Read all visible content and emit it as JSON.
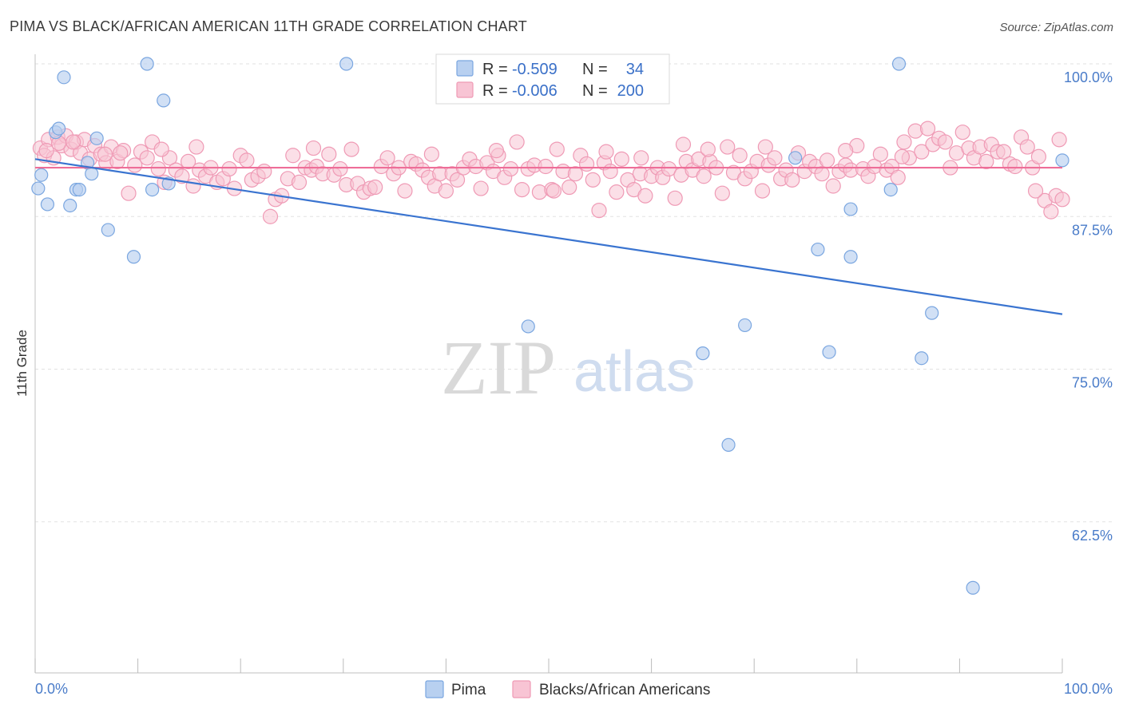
{
  "header": {
    "title": "PIMA VS BLACK/AFRICAN AMERICAN 11TH GRADE CORRELATION CHART",
    "source": "Source: ZipAtlas.com"
  },
  "watermark": {
    "zip": "ZIP",
    "atlas": "atlas"
  },
  "legend": {
    "rows": [
      {
        "r_label": "R =",
        "r_value": "-0.509",
        "n_label": "N =",
        "n_value": "34"
      },
      {
        "r_label": "R =",
        "r_value": "-0.006",
        "n_label": "N =",
        "n_value": "200"
      }
    ]
  },
  "bottom_legend": {
    "pima": "Pima",
    "black": "Blacks/African Americans"
  },
  "colors": {
    "pima_fill": "#b8d0f0",
    "pima_stroke": "#7aa6e0",
    "pima_line": "#3a74d0",
    "black_fill": "#f8c4d4",
    "black_stroke": "#ef9ab5",
    "black_line": "#ee6e98",
    "tick_label": "#4a7cc9",
    "grid": "#e2e2e2"
  },
  "chart_data": {
    "type": "scatter",
    "title": "PIMA VS BLACK/AFRICAN AMERICAN 11TH GRADE CORRELATION CHART",
    "xlabel": "",
    "ylabel": "11th Grade",
    "xlim": [
      0,
      100
    ],
    "ylim": [
      52,
      101
    ],
    "x_tick_labels": [
      "0.0%",
      "100.0%"
    ],
    "y_ticks": [
      100,
      87.5,
      75,
      62.5
    ],
    "y_tick_labels": [
      "100.0%",
      "87.5%",
      "75.0%",
      "62.5%"
    ],
    "grid": true,
    "legend_position": "top-center",
    "series": [
      {
        "name": "Pima",
        "trend": {
          "x": [
            0,
            100
          ],
          "y": [
            92.2,
            79.5
          ]
        },
        "points": [
          [
            0.3,
            89.8
          ],
          [
            0.6,
            90.9
          ],
          [
            1.2,
            88.5
          ],
          [
            2.0,
            94.4
          ],
          [
            2.3,
            94.7
          ],
          [
            2.8,
            98.9
          ],
          [
            3.4,
            88.4
          ],
          [
            4.0,
            89.7
          ],
          [
            4.3,
            89.7
          ],
          [
            5.1,
            91.9
          ],
          [
            5.5,
            91.0
          ],
          [
            6.0,
            93.9
          ],
          [
            7.1,
            86.4
          ],
          [
            9.6,
            84.2
          ],
          [
            10.9,
            100.0
          ],
          [
            11.4,
            89.7
          ],
          [
            12.5,
            97.0
          ],
          [
            13.0,
            90.2
          ],
          [
            30.3,
            100.0
          ],
          [
            48.0,
            78.5
          ],
          [
            65.0,
            76.3
          ],
          [
            67.5,
            68.8
          ],
          [
            69.1,
            78.6
          ],
          [
            74.0,
            92.3
          ],
          [
            76.2,
            84.8
          ],
          [
            77.3,
            76.4
          ],
          [
            79.4,
            84.2
          ],
          [
            79.4,
            88.1
          ],
          [
            83.3,
            89.7
          ],
          [
            84.1,
            100.0
          ],
          [
            86.3,
            75.9
          ],
          [
            87.3,
            79.6
          ],
          [
            91.3,
            57.1
          ],
          [
            100.0,
            92.1
          ]
        ]
      },
      {
        "name": "Blacks/African Americans",
        "trend": {
          "x": [
            0,
            100
          ],
          "y": [
            91.5,
            91.5
          ]
        },
        "points": [
          [
            0.5,
            93.1
          ],
          [
            0.9,
            92.5
          ],
          [
            1.3,
            93.8
          ],
          [
            1.8,
            92.3
          ],
          [
            2.2,
            94.0
          ],
          [
            2.6,
            93.3
          ],
          [
            3.0,
            94.1
          ],
          [
            3.5,
            93.0
          ],
          [
            4.0,
            93.6
          ],
          [
            4.4,
            92.7
          ],
          [
            4.8,
            93.8
          ],
          [
            5.3,
            92.2
          ],
          [
            5.8,
            93.3
          ],
          [
            6.4,
            92.6
          ],
          [
            6.9,
            91.9
          ],
          [
            7.4,
            93.2
          ],
          [
            8.0,
            92.0
          ],
          [
            8.6,
            92.9
          ],
          [
            9.1,
            89.4
          ],
          [
            9.7,
            91.7
          ],
          [
            10.3,
            92.8
          ],
          [
            10.9,
            92.3
          ],
          [
            11.4,
            93.6
          ],
          [
            12.0,
            91.4
          ],
          [
            12.6,
            90.3
          ],
          [
            13.1,
            92.3
          ],
          [
            13.7,
            91.3
          ],
          [
            14.3,
            90.8
          ],
          [
            14.9,
            92.0
          ],
          [
            15.4,
            90.0
          ],
          [
            16.0,
            91.3
          ],
          [
            16.6,
            90.8
          ],
          [
            17.1,
            91.5
          ],
          [
            17.7,
            90.3
          ],
          [
            18.3,
            90.6
          ],
          [
            18.9,
            91.4
          ],
          [
            19.4,
            89.8
          ],
          [
            20.0,
            92.5
          ],
          [
            20.6,
            92.1
          ],
          [
            21.1,
            90.5
          ],
          [
            21.7,
            90.8
          ],
          [
            22.3,
            91.2
          ],
          [
            22.9,
            87.5
          ],
          [
            23.4,
            88.9
          ],
          [
            24.0,
            89.2
          ],
          [
            24.6,
            90.6
          ],
          [
            25.1,
            92.5
          ],
          [
            25.7,
            90.3
          ],
          [
            26.3,
            91.5
          ],
          [
            26.9,
            91.3
          ],
          [
            27.4,
            91.6
          ],
          [
            28.0,
            91.0
          ],
          [
            28.6,
            92.6
          ],
          [
            29.1,
            90.9
          ],
          [
            29.7,
            91.4
          ],
          [
            30.3,
            90.1
          ],
          [
            30.8,
            93.0
          ],
          [
            31.4,
            90.2
          ],
          [
            32.0,
            89.5
          ],
          [
            32.6,
            89.8
          ],
          [
            33.1,
            89.9
          ],
          [
            33.7,
            91.6
          ],
          [
            34.3,
            92.3
          ],
          [
            34.9,
            91.0
          ],
          [
            35.4,
            91.5
          ],
          [
            36.0,
            89.6
          ],
          [
            36.6,
            92.0
          ],
          [
            37.1,
            91.8
          ],
          [
            37.7,
            91.3
          ],
          [
            38.3,
            90.7
          ],
          [
            38.9,
            90.0
          ],
          [
            39.4,
            91.0
          ],
          [
            40.0,
            89.6
          ],
          [
            40.6,
            91.0
          ],
          [
            41.1,
            90.5
          ],
          [
            41.7,
            91.5
          ],
          [
            42.3,
            92.2
          ],
          [
            42.9,
            91.6
          ],
          [
            43.4,
            89.8
          ],
          [
            44.0,
            91.9
          ],
          [
            44.6,
            91.2
          ],
          [
            45.1,
            92.5
          ],
          [
            45.7,
            90.7
          ],
          [
            46.3,
            91.4
          ],
          [
            46.9,
            93.6
          ],
          [
            47.4,
            89.7
          ],
          [
            48.0,
            91.4
          ],
          [
            48.6,
            91.7
          ],
          [
            49.1,
            89.5
          ],
          [
            49.7,
            91.6
          ],
          [
            50.3,
            89.7
          ],
          [
            50.8,
            93.0
          ],
          [
            51.4,
            91.2
          ],
          [
            52.0,
            89.9
          ],
          [
            52.6,
            91.0
          ],
          [
            53.1,
            92.5
          ],
          [
            53.7,
            91.8
          ],
          [
            54.3,
            90.5
          ],
          [
            54.9,
            88.0
          ],
          [
            55.4,
            91.9
          ],
          [
            56.0,
            91.2
          ],
          [
            56.6,
            89.5
          ],
          [
            57.1,
            92.2
          ],
          [
            57.7,
            90.5
          ],
          [
            58.3,
            89.7
          ],
          [
            58.9,
            91.0
          ],
          [
            59.4,
            89.2
          ],
          [
            60.0,
            90.8
          ],
          [
            60.6,
            91.5
          ],
          [
            61.1,
            90.7
          ],
          [
            61.7,
            91.4
          ],
          [
            62.3,
            89.0
          ],
          [
            62.9,
            90.9
          ],
          [
            63.4,
            92.0
          ],
          [
            64.0,
            91.3
          ],
          [
            64.6,
            92.2
          ],
          [
            65.1,
            90.8
          ],
          [
            65.7,
            92.0
          ],
          [
            66.3,
            91.5
          ],
          [
            66.9,
            89.4
          ],
          [
            67.4,
            93.2
          ],
          [
            68.0,
            91.1
          ],
          [
            68.6,
            92.5
          ],
          [
            69.1,
            90.6
          ],
          [
            69.7,
            91.2
          ],
          [
            70.3,
            92.0
          ],
          [
            70.8,
            89.6
          ],
          [
            71.4,
            91.7
          ],
          [
            72.0,
            92.3
          ],
          [
            72.6,
            90.6
          ],
          [
            73.1,
            91.3
          ],
          [
            73.7,
            90.5
          ],
          [
            74.3,
            92.7
          ],
          [
            74.9,
            91.2
          ],
          [
            75.4,
            92.0
          ],
          [
            76.0,
            91.6
          ],
          [
            76.6,
            91.0
          ],
          [
            77.1,
            92.1
          ],
          [
            77.7,
            90.0
          ],
          [
            78.3,
            91.2
          ],
          [
            78.9,
            91.7
          ],
          [
            79.4,
            91.3
          ],
          [
            80.0,
            93.3
          ],
          [
            80.6,
            91.4
          ],
          [
            81.1,
            90.8
          ],
          [
            81.7,
            91.6
          ],
          [
            82.3,
            92.6
          ],
          [
            82.9,
            91.3
          ],
          [
            83.4,
            91.6
          ],
          [
            84.0,
            90.7
          ],
          [
            84.6,
            93.6
          ],
          [
            85.1,
            92.3
          ],
          [
            85.7,
            94.5
          ],
          [
            86.3,
            92.8
          ],
          [
            86.9,
            94.7
          ],
          [
            87.4,
            93.4
          ],
          [
            88.0,
            93.9
          ],
          [
            88.6,
            93.6
          ],
          [
            89.1,
            91.5
          ],
          [
            89.7,
            92.7
          ],
          [
            90.3,
            94.4
          ],
          [
            90.9,
            93.1
          ],
          [
            91.4,
            92.3
          ],
          [
            92.0,
            93.2
          ],
          [
            92.6,
            92.0
          ],
          [
            93.1,
            93.4
          ],
          [
            93.7,
            92.8
          ],
          [
            94.3,
            92.8
          ],
          [
            94.9,
            91.8
          ],
          [
            95.4,
            91.6
          ],
          [
            96.0,
            94.0
          ],
          [
            96.6,
            93.2
          ],
          [
            97.1,
            91.5
          ],
          [
            97.7,
            92.4
          ],
          [
            98.3,
            88.8
          ],
          [
            98.9,
            87.9
          ],
          [
            99.4,
            89.2
          ],
          [
            100.0,
            88.9
          ],
          [
            8.3,
            92.7
          ],
          [
            12.3,
            93.0
          ],
          [
            15.7,
            93.2
          ],
          [
            27.1,
            93.1
          ],
          [
            38.6,
            92.6
          ],
          [
            44.9,
            92.9
          ],
          [
            55.6,
            92.8
          ],
          [
            63.1,
            93.4
          ],
          [
            71.1,
            93.2
          ],
          [
            78.9,
            92.9
          ],
          [
            84.4,
            92.4
          ],
          [
            97.4,
            89.6
          ],
          [
            99.7,
            93.8
          ],
          [
            1.1,
            92.9
          ],
          [
            2.3,
            93.5
          ],
          [
            3.7,
            93.6
          ],
          [
            6.8,
            92.6
          ],
          [
            50.5,
            89.6
          ],
          [
            59.0,
            92.3
          ],
          [
            65.5,
            93.0
          ]
        ]
      }
    ]
  }
}
